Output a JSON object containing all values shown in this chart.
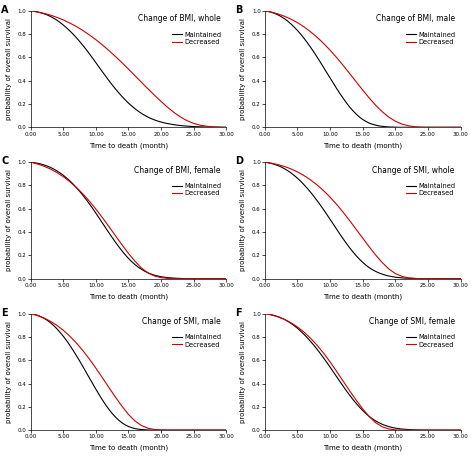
{
  "panels": [
    {
      "label": "A",
      "title": "Change of BMI, whole",
      "maintained_y": [
        1.0,
        0.995,
        0.99,
        0.983,
        0.975,
        0.965,
        0.952,
        0.937,
        0.92,
        0.9,
        0.878,
        0.854,
        0.828,
        0.8,
        0.77,
        0.738,
        0.704,
        0.669,
        0.632,
        0.594,
        0.555,
        0.516,
        0.477,
        0.439,
        0.401,
        0.365,
        0.33,
        0.297,
        0.265,
        0.236,
        0.208,
        0.183,
        0.16,
        0.139,
        0.12,
        0.103,
        0.088,
        0.075,
        0.064,
        0.054,
        0.046,
        0.039,
        0.033,
        0.028,
        0.023,
        0.019,
        0.016,
        0.013,
        0.011,
        0.009,
        0.007,
        0.006,
        0.005,
        0.004,
        0.003,
        0.003,
        0.002,
        0.002,
        0.002,
        0.001,
        0.001
      ],
      "decreased_y": [
        1.0,
        0.99,
        0.978,
        0.963,
        0.944,
        0.921,
        0.895,
        0.865,
        0.831,
        0.793,
        0.752,
        0.707,
        0.659,
        0.608,
        0.555,
        0.5,
        0.443,
        0.386,
        0.33,
        0.275,
        0.222,
        0.172,
        0.127,
        0.088,
        0.057,
        0.034,
        0.019,
        0.01,
        0.005,
        0.002,
        0.001
      ]
    },
    {
      "label": "B",
      "title": "Change of BMI, male",
      "maintained_y": [
        1.0,
        0.994,
        0.987,
        0.977,
        0.965,
        0.95,
        0.932,
        0.911,
        0.887,
        0.86,
        0.831,
        0.799,
        0.764,
        0.727,
        0.688,
        0.647,
        0.604,
        0.56,
        0.515,
        0.469,
        0.424,
        0.379,
        0.334,
        0.291,
        0.25,
        0.211,
        0.175,
        0.143,
        0.114,
        0.089,
        0.068,
        0.051,
        0.037,
        0.027,
        0.019,
        0.013,
        0.009,
        0.006,
        0.004,
        0.003,
        0.002,
        0.001,
        0.001,
        0.001,
        0.001,
        0.001,
        0.001,
        0.001,
        0.001,
        0.001,
        0.001,
        0.001,
        0.001,
        0.001,
        0.001,
        0.001,
        0.001,
        0.001,
        0.001,
        0.001,
        0.001
      ],
      "decreased_y": [
        1.0,
        0.988,
        0.973,
        0.953,
        0.928,
        0.898,
        0.862,
        0.82,
        0.773,
        0.72,
        0.662,
        0.599,
        0.532,
        0.462,
        0.391,
        0.32,
        0.252,
        0.189,
        0.134,
        0.088,
        0.053,
        0.029,
        0.014,
        0.006,
        0.002,
        0.001,
        0.001,
        0.001,
        0.001,
        0.001,
        0.001
      ]
    },
    {
      "label": "C",
      "title": "Change of BMI, female",
      "maintained_y": [
        1.0,
        0.996,
        0.991,
        0.985,
        0.977,
        0.967,
        0.956,
        0.942,
        0.926,
        0.908,
        0.888,
        0.865,
        0.84,
        0.813,
        0.783,
        0.751,
        0.717,
        0.681,
        0.643,
        0.604,
        0.563,
        0.521,
        0.479,
        0.437,
        0.395,
        0.354,
        0.314,
        0.276,
        0.24,
        0.206,
        0.175,
        0.147,
        0.122,
        0.1,
        0.081,
        0.065,
        0.051,
        0.04,
        0.031,
        0.024,
        0.018,
        0.014,
        0.01,
        0.008,
        0.006,
        0.004,
        0.003,
        0.002,
        0.002,
        0.001,
        0.001,
        0.001,
        0.001,
        0.001,
        0.001,
        0.001,
        0.001,
        0.001,
        0.001,
        0.001,
        0.001
      ],
      "decreased_y": [
        1.0,
        0.985,
        0.966,
        0.942,
        0.912,
        0.876,
        0.833,
        0.784,
        0.728,
        0.666,
        0.598,
        0.525,
        0.448,
        0.37,
        0.292,
        0.218,
        0.15,
        0.092,
        0.05,
        0.024,
        0.01,
        0.004,
        0.001,
        0.001,
        0.001,
        0.001,
        0.001,
        0.001,
        0.001,
        0.001,
        0.001
      ]
    },
    {
      "label": "D",
      "title": "Change of SMI, whole",
      "maintained_y": [
        1.0,
        0.995,
        0.989,
        0.981,
        0.971,
        0.959,
        0.944,
        0.927,
        0.908,
        0.886,
        0.862,
        0.836,
        0.807,
        0.776,
        0.743,
        0.708,
        0.671,
        0.633,
        0.593,
        0.552,
        0.51,
        0.468,
        0.426,
        0.384,
        0.343,
        0.304,
        0.266,
        0.231,
        0.198,
        0.168,
        0.141,
        0.117,
        0.096,
        0.078,
        0.063,
        0.05,
        0.04,
        0.031,
        0.024,
        0.019,
        0.014,
        0.011,
        0.008,
        0.006,
        0.005,
        0.004,
        0.003,
        0.002,
        0.002,
        0.001,
        0.001,
        0.001,
        0.001,
        0.001,
        0.001,
        0.001,
        0.001,
        0.001,
        0.001,
        0.001,
        0.001
      ],
      "decreased_y": [
        1.0,
        0.991,
        0.979,
        0.963,
        0.942,
        0.916,
        0.885,
        0.848,
        0.805,
        0.756,
        0.7,
        0.638,
        0.571,
        0.499,
        0.424,
        0.349,
        0.274,
        0.203,
        0.139,
        0.085,
        0.045,
        0.021,
        0.008,
        0.003,
        0.001,
        0.001,
        0.001,
        0.001,
        0.001,
        0.001,
        0.001
      ]
    },
    {
      "label": "E",
      "title": "Change of SMI, male",
      "maintained_y": [
        1.0,
        0.994,
        0.986,
        0.975,
        0.961,
        0.944,
        0.923,
        0.899,
        0.871,
        0.84,
        0.806,
        0.769,
        0.729,
        0.686,
        0.641,
        0.595,
        0.547,
        0.498,
        0.449,
        0.4,
        0.352,
        0.305,
        0.26,
        0.218,
        0.179,
        0.144,
        0.113,
        0.086,
        0.064,
        0.046,
        0.032,
        0.022,
        0.014,
        0.009,
        0.006,
        0.004,
        0.002,
        0.001,
        0.001,
        0.001,
        0.001,
        0.001,
        0.001,
        0.001,
        0.001,
        0.001,
        0.001,
        0.001,
        0.001,
        0.001,
        0.001,
        0.001,
        0.001,
        0.001,
        0.001,
        0.001,
        0.001,
        0.001,
        0.001,
        0.001,
        0.001
      ],
      "decreased_y": [
        1.0,
        0.984,
        0.963,
        0.935,
        0.9,
        0.857,
        0.807,
        0.749,
        0.683,
        0.611,
        0.532,
        0.45,
        0.366,
        0.284,
        0.206,
        0.135,
        0.079,
        0.04,
        0.017,
        0.006,
        0.002,
        0.001,
        0.001,
        0.001,
        0.001,
        0.001,
        0.001,
        0.001,
        0.001,
        0.001,
        0.001
      ]
    },
    {
      "label": "F",
      "title": "Change of SMI, female",
      "maintained_y": [
        1.0,
        0.995,
        0.99,
        0.983,
        0.974,
        0.963,
        0.95,
        0.934,
        0.916,
        0.896,
        0.874,
        0.849,
        0.822,
        0.793,
        0.762,
        0.729,
        0.694,
        0.658,
        0.62,
        0.581,
        0.541,
        0.5,
        0.459,
        0.418,
        0.378,
        0.338,
        0.3,
        0.264,
        0.23,
        0.198,
        0.169,
        0.142,
        0.118,
        0.097,
        0.079,
        0.064,
        0.051,
        0.04,
        0.031,
        0.024,
        0.018,
        0.014,
        0.01,
        0.008,
        0.006,
        0.004,
        0.003,
        0.002,
        0.002,
        0.001,
        0.001,
        0.001,
        0.001,
        0.001,
        0.001,
        0.001,
        0.001,
        0.001,
        0.001,
        0.001,
        0.001
      ],
      "decreased_y": [
        1.0,
        0.988,
        0.972,
        0.95,
        0.921,
        0.885,
        0.841,
        0.789,
        0.729,
        0.661,
        0.586,
        0.505,
        0.421,
        0.338,
        0.258,
        0.183,
        0.117,
        0.064,
        0.029,
        0.011,
        0.003,
        0.001,
        0.001,
        0.001,
        0.001,
        0.001,
        0.001,
        0.001,
        0.001,
        0.001,
        0.001
      ]
    }
  ],
  "maintained_color": "#000000",
  "decreased_color": "#cc0000",
  "xlabel": "Time to death (month)",
  "ylabel": "probability of overall survival",
  "xlim": [
    0,
    30
  ],
  "ylim": [
    0.0,
    1.0
  ],
  "xticks": [
    0,
    5,
    10,
    15,
    20,
    25,
    30
  ],
  "yticks": [
    0.0,
    0.2,
    0.4,
    0.6,
    0.8,
    1.0
  ],
  "xtick_labels": [
    "0.00",
    "5.00",
    "10.00",
    "15.00",
    "20.00",
    "25.00",
    "30.00"
  ],
  "ytick_labels": [
    "0.0",
    "0.2",
    "0.4",
    "0.6",
    "0.8",
    "1.0"
  ],
  "legend_maintained": "Maintained",
  "legend_decreased": "Decreased",
  "line_width": 0.8,
  "label_fontsize": 5.0,
  "tick_fontsize": 4.0,
  "title_fontsize": 5.5,
  "legend_fontsize": 4.8,
  "panel_label_fontsize": 7,
  "background_color": "#f0f0f0"
}
